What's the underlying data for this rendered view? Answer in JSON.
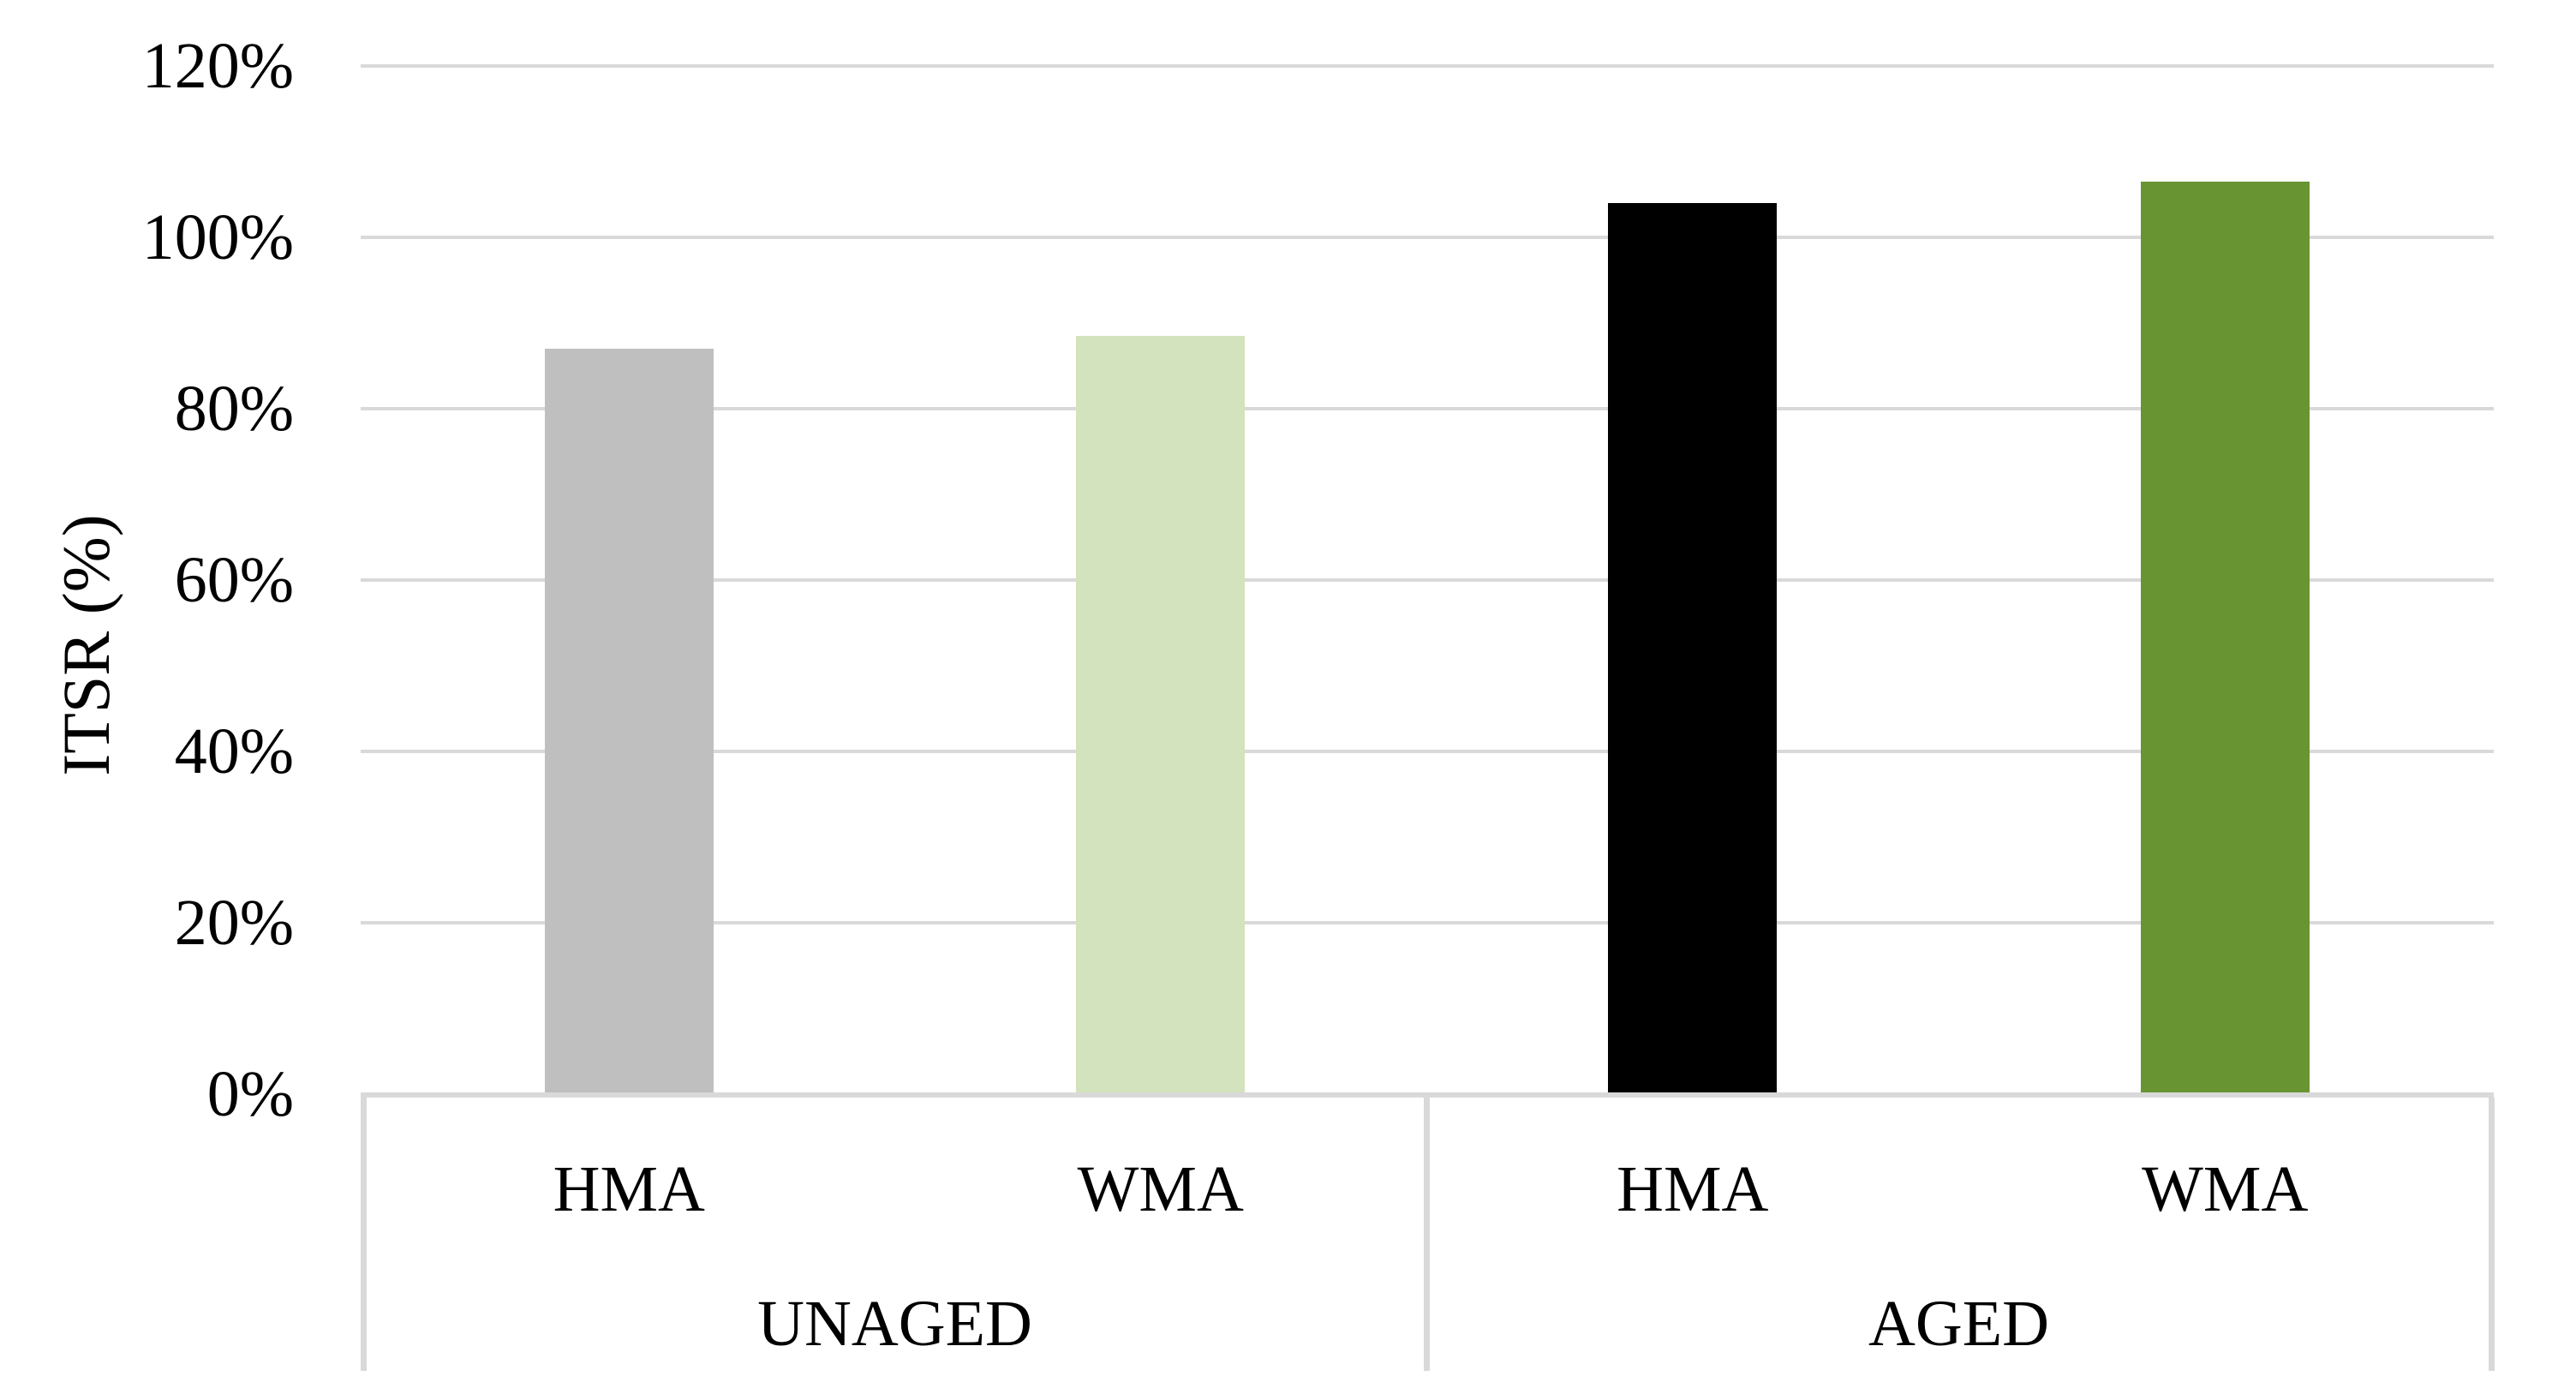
{
  "chart_data": {
    "type": "bar",
    "title": "",
    "xlabel": "",
    "ylabel": "ITSR (%)",
    "ylim": [
      0,
      120
    ],
    "unit": "percent",
    "grid": "horizontal",
    "legend_position": "none",
    "gridline_color": "#d9d9d9",
    "axis_line_color": "#d9d9d9",
    "divider_color": "#d9d9d9",
    "yticks": [
      {
        "value": 0,
        "label": "0%"
      },
      {
        "value": 20,
        "label": "20%"
      },
      {
        "value": 40,
        "label": "40%"
      },
      {
        "value": 60,
        "label": "60%"
      },
      {
        "value": 80,
        "label": "80%"
      },
      {
        "value": 100,
        "label": "100%"
      },
      {
        "value": 120,
        "label": "120%"
      }
    ],
    "groups": [
      {
        "label": "UNAGED",
        "bars": [
          {
            "label": "HMA",
            "value": 87,
            "color": "#bfbfbf"
          },
          {
            "label": "WMA",
            "value": 88.5,
            "color": "#d2e3bd"
          }
        ]
      },
      {
        "label": "AGED",
        "bars": [
          {
            "label": "HMA",
            "value": 104,
            "color": "#000000"
          },
          {
            "label": "WMA",
            "value": 106.5,
            "color": "#689432"
          }
        ]
      }
    ],
    "categories": [
      "UNAGED HMA",
      "UNAGED WMA",
      "AGED HMA",
      "AGED WMA"
    ],
    "values": [
      87,
      88.5,
      104,
      106.5
    ]
  }
}
